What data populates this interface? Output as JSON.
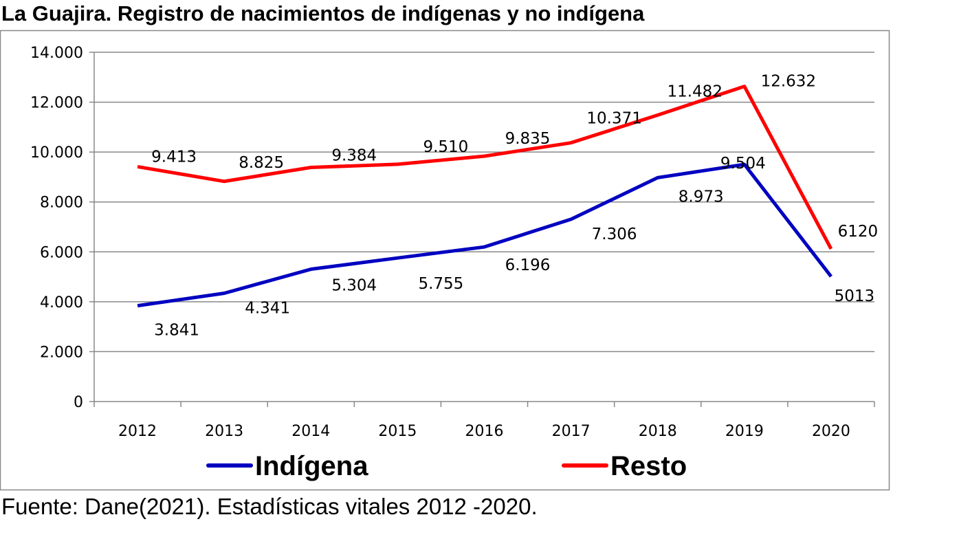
{
  "chart_data": {
    "type": "line",
    "title": "La Guajira. Registro de nacimientos de indígenas y no indígena",
    "source": "Fuente: Dane(2021). Estadísticas vitales 2012 -2020.",
    "categories": [
      "2012",
      "2013",
      "2014",
      "2015",
      "2016",
      "2017",
      "2018",
      "2019",
      "2020"
    ],
    "ylim": [
      0,
      14000
    ],
    "yticks": [
      0,
      2000,
      4000,
      6000,
      8000,
      10000,
      12000,
      14000
    ],
    "ytick_labels": [
      "0",
      "2.000",
      "4.000",
      "6.000",
      "8.000",
      "10.000",
      "12.000",
      "14.000"
    ],
    "grid": "horizontal",
    "legend": "bottom",
    "series": [
      {
        "name": "Indígena",
        "color": "#0000C0",
        "values": [
          3841,
          4341,
          5304,
          5755,
          6196,
          7306,
          8973,
          9504,
          5013
        ],
        "labels": [
          "3.841",
          "4.341",
          "5.304",
          "5.755",
          "6.196",
          "7.306",
          "8.973",
          "9.504",
          "5013"
        ]
      },
      {
        "name": "Resto",
        "color": "#FF0000",
        "values": [
          9413,
          8825,
          9384,
          9510,
          9835,
          10371,
          11482,
          12632,
          6120
        ],
        "labels": [
          "9.413",
          "8.825",
          "9.384",
          "9.510",
          "9.835",
          "10.371",
          "11.482",
          "12.632",
          "6120"
        ]
      }
    ]
  }
}
